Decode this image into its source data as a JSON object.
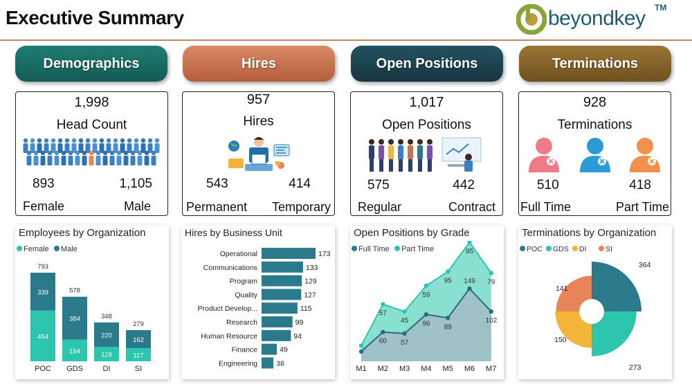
{
  "header": {
    "title": "Executive Summary",
    "logo_text": "beyondkey",
    "logo_tm": "TM"
  },
  "colors": {
    "demographics": "#1a6e66",
    "hires": "#c9714d",
    "open_positions": "#1c3f4a",
    "terminations": "#86632a",
    "teal_dark": "#2a7a8c",
    "teal_light": "#2cc5ad",
    "orange": "#e8845a",
    "yellow": "#f2b53a"
  },
  "pills": [
    {
      "label": "Demographics"
    },
    {
      "label": "Hires"
    },
    {
      "label": "Open Positions"
    },
    {
      "label": "Terminations"
    }
  ],
  "kpis": {
    "demographics": {
      "value": "1,998",
      "label": "Head Count",
      "left_value": "893",
      "left_label": "Female",
      "right_value": "1,105",
      "right_label": "Male",
      "icon": "people-crowd-icon"
    },
    "hires": {
      "value": "957",
      "label": "Hires",
      "left_value": "543",
      "left_label": "Permanent",
      "right_value": "414",
      "right_label": "Temporary",
      "icon": "hiring-team-icon"
    },
    "open_positions": {
      "value": "1,017",
      "label": "Open Positions",
      "left_value": "575",
      "left_label": "Regular",
      "right_value": "442",
      "right_label": "Contract",
      "icon": "candidates-icon"
    },
    "terminations": {
      "value": "928",
      "label": "Terminations",
      "left_value": "510",
      "left_label": "Full Time",
      "right_value": "418",
      "right_label": "Part Time",
      "icon": "user-remove-icon"
    }
  },
  "chart_data": [
    {
      "type": "bar",
      "stacked": true,
      "title": "Employees by Organization",
      "categories": [
        "POC",
        "GDS",
        "DI",
        "SI"
      ],
      "series": [
        {
          "name": "Female",
          "values": [
            454,
            194,
            128,
            117
          ],
          "color": "#2cc5ad"
        },
        {
          "name": "Male",
          "values": [
            339,
            384,
            220,
            162
          ],
          "color": "#2a7a8c"
        }
      ],
      "totals": [
        793,
        578,
        348,
        279
      ],
      "legend": "top-left"
    },
    {
      "type": "bar",
      "orientation": "horizontal",
      "title": "Hires by Business Unit",
      "categories": [
        "Operational",
        "Communications",
        "Program",
        "Quality",
        "Product Develop...",
        "Research",
        "Human Resource",
        "Finance",
        "Engineering"
      ],
      "values": [
        173,
        133,
        129,
        127,
        115,
        99,
        94,
        49,
        38
      ],
      "color": "#2a7a8c"
    },
    {
      "type": "area",
      "title": "Open Positions by Grade",
      "x": [
        "M1",
        "M2",
        "M3",
        "M4",
        "M5",
        "M6",
        "M7"
      ],
      "series": [
        {
          "name": "Full Time",
          "values": [
            20,
            60,
            57,
            96,
            89,
            149,
            102
          ],
          "color": "#2a7a8c"
        },
        {
          "name": "Part Time",
          "values": [
            null,
            57,
            45,
            59,
            95,
            95,
            79
          ],
          "color": "#2cc5ad"
        }
      ],
      "legend": "top-left"
    },
    {
      "type": "pie",
      "variant": "rose-donut",
      "title": "Terminations by Organization",
      "categories": [
        "POC",
        "GDS",
        "DI",
        "SI"
      ],
      "values": [
        364,
        273,
        150,
        141
      ],
      "colors": [
        "#2a7a8c",
        "#2cc5ad",
        "#f2b53a",
        "#e8845a"
      ],
      "legend": "top-left"
    }
  ]
}
